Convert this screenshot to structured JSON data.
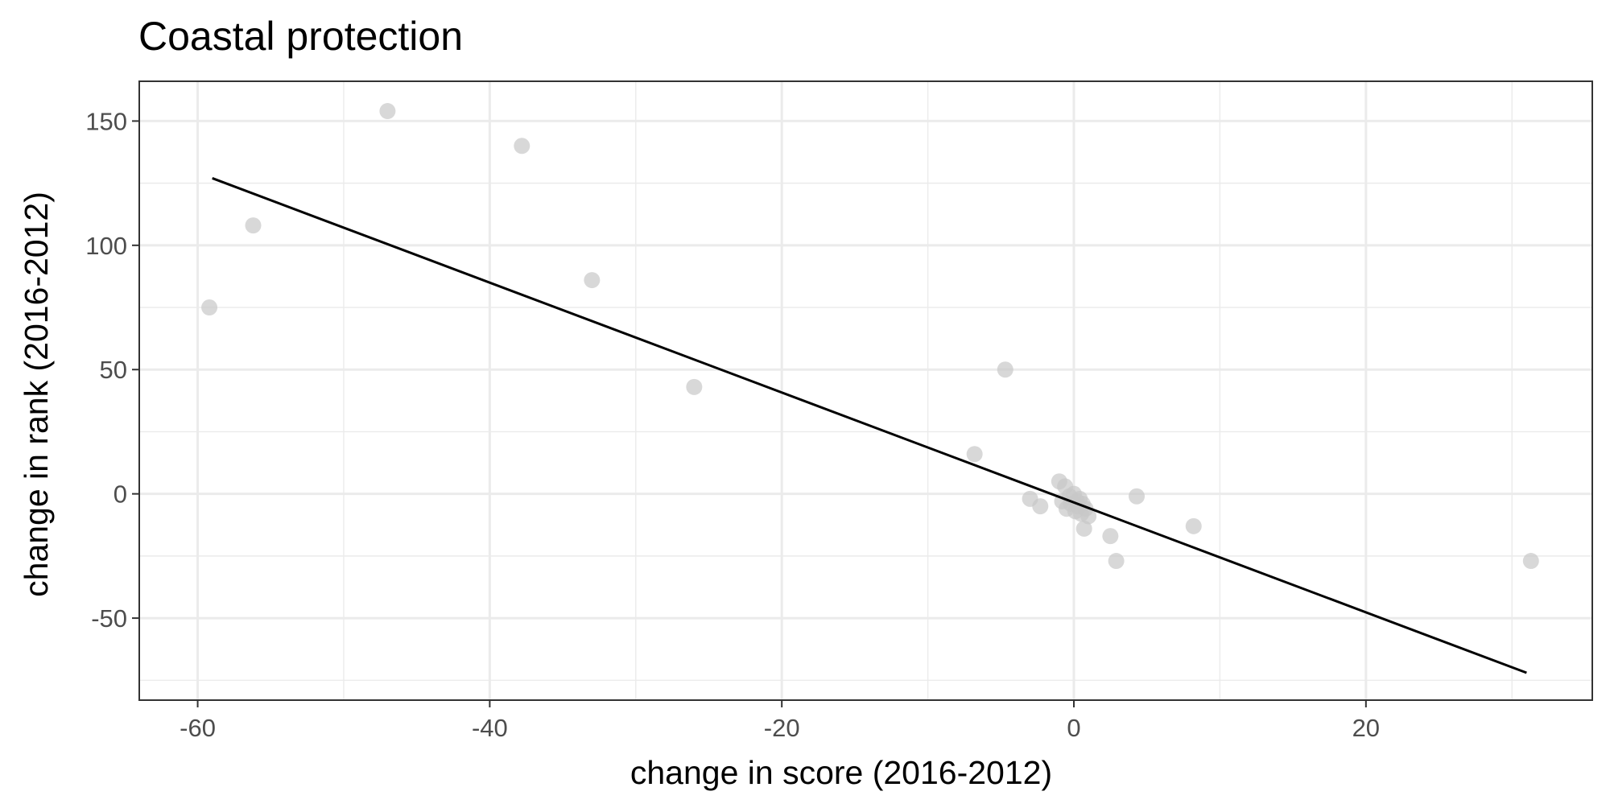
{
  "chart_data": {
    "type": "scatter",
    "title": "Coastal protection",
    "xlabel": "change in score (2016-2012)",
    "ylabel": "change in rank (2016-2012)",
    "xlim": [
      -64,
      35.5
    ],
    "ylim": [
      -83,
      166
    ],
    "x_ticks": [
      -60,
      -40,
      -20,
      0,
      20
    ],
    "x_tick_labels": [
      "-60",
      "-40",
      "-20",
      "0",
      "20"
    ],
    "y_ticks": [
      -50,
      0,
      50,
      100,
      150
    ],
    "y_tick_labels": [
      "-50",
      "0",
      "50",
      "100",
      "150"
    ],
    "x_minor_ticks": [
      -50,
      -30,
      -10,
      10,
      30
    ],
    "y_minor_ticks": [
      -75,
      -25,
      25,
      75,
      125
    ],
    "grid": true,
    "point_color": "#c8c8c8",
    "line_color": "#000000",
    "points": [
      {
        "x": -59.2,
        "y": 75
      },
      {
        "x": -56.2,
        "y": 108
      },
      {
        "x": -47.0,
        "y": 154
      },
      {
        "x": -37.8,
        "y": 140
      },
      {
        "x": -33.0,
        "y": 86
      },
      {
        "x": -26.0,
        "y": 43
      },
      {
        "x": -6.8,
        "y": 16
      },
      {
        "x": -4.7,
        "y": 50
      },
      {
        "x": -3.0,
        "y": -2
      },
      {
        "x": -2.3,
        "y": -5
      },
      {
        "x": -1.0,
        "y": 5
      },
      {
        "x": -0.8,
        "y": -3
      },
      {
        "x": -0.6,
        "y": 3
      },
      {
        "x": -0.5,
        "y": -6
      },
      {
        "x": -0.3,
        "y": -1
      },
      {
        "x": -0.2,
        "y": -4
      },
      {
        "x": 0.0,
        "y": 0
      },
      {
        "x": 0.1,
        "y": -7
      },
      {
        "x": 0.2,
        "y": -3
      },
      {
        "x": 0.3,
        "y": -5
      },
      {
        "x": 0.4,
        "y": -2
      },
      {
        "x": 0.5,
        "y": -8
      },
      {
        "x": 0.6,
        "y": -4
      },
      {
        "x": 0.8,
        "y": -6
      },
      {
        "x": 1.0,
        "y": -9
      },
      {
        "x": 0.7,
        "y": -14
      },
      {
        "x": 2.5,
        "y": -17
      },
      {
        "x": 2.9,
        "y": -27
      },
      {
        "x": 4.3,
        "y": -1
      },
      {
        "x": 8.2,
        "y": -13
      },
      {
        "x": 31.3,
        "y": -27
      }
    ],
    "trend_line": {
      "x": [
        -59.0,
        31.0
      ],
      "y": [
        127,
        -72
      ]
    }
  }
}
